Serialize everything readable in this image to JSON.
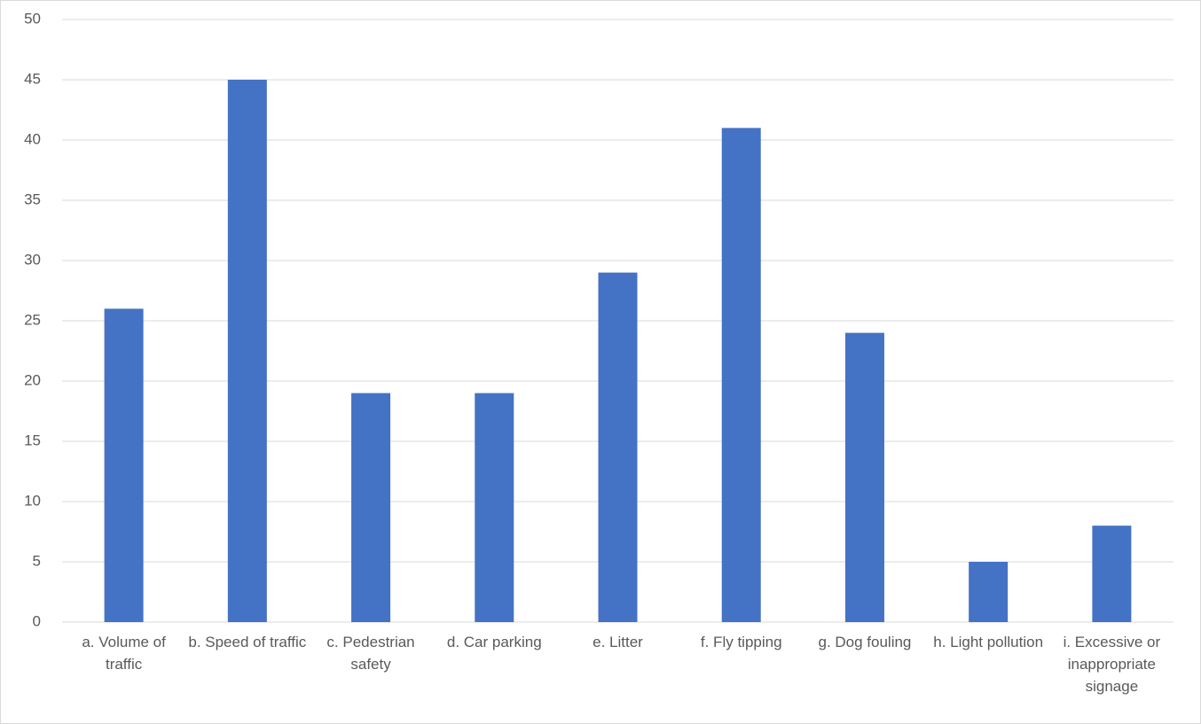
{
  "chart_data": {
    "type": "bar",
    "categories": [
      "a. Volume of traffic",
      "b. Speed of traffic",
      "c. Pedestrian safety",
      "d. Car parking",
      "e. Litter",
      "f. Fly tipping",
      "g. Dog fouling",
      "h. Light pollution",
      "i. Excessive or inappropriate signage"
    ],
    "values": [
      26,
      45,
      19,
      19,
      29,
      41,
      24,
      5,
      8
    ],
    "color": "#4472c4",
    "ylim": [
      0,
      50
    ],
    "yticks": [
      0,
      5,
      10,
      15,
      20,
      25,
      30,
      35,
      40,
      45,
      50
    ],
    "grid": true
  }
}
